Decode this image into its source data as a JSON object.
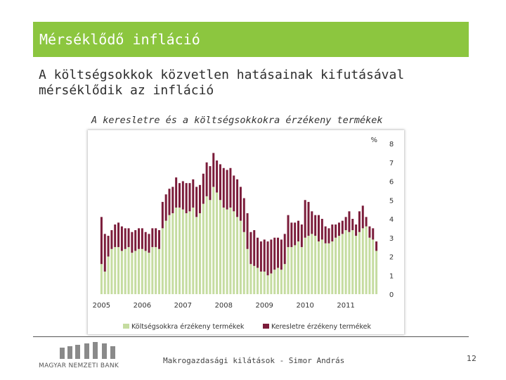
{
  "slide": {
    "title": "Mérséklődő infláció",
    "subtitle": "A költségsokkok közvetlen hatásainak kifutásával mérséklődik az infláció",
    "footer_text": "Makrogazdasági kilátások - Simor András",
    "page_number": "12",
    "logo_text": "MAGYAR NEMZETI BANK"
  },
  "colors": {
    "title_bar": "#8cc63f",
    "series_cost": "#c5dca0",
    "series_demand": "#7b1c3a"
  },
  "chart_data": {
    "type": "bar",
    "stacked": true,
    "title": "A keresletre és a költségsokkokra érzékeny termékek",
    "ylabel": "%",
    "ylim": [
      0,
      8
    ],
    "yticks": [
      "0",
      "1",
      "2",
      "3",
      "4",
      "5",
      "6",
      "7",
      "8"
    ],
    "x_tick_labels": [
      "2005",
      "2006",
      "2007",
      "2008",
      "2009",
      "2010",
      "2011"
    ],
    "legend_position": "bottom",
    "frequency": "monthly",
    "start": "2005-01",
    "series": [
      {
        "name": "Költségsokkra érzékeny termékek",
        "values": [
          1.6,
          1.2,
          2.0,
          2.4,
          2.5,
          2.5,
          2.3,
          2.4,
          2.5,
          2.2,
          2.3,
          2.4,
          2.4,
          2.3,
          2.2,
          2.5,
          2.5,
          2.4,
          3.5,
          3.9,
          4.2,
          4.3,
          4.6,
          4.6,
          4.5,
          4.3,
          4.4,
          4.6,
          4.1,
          4.3,
          4.8,
          5.2,
          5.0,
          5.7,
          5.4,
          5.0,
          4.6,
          4.5,
          4.6,
          4.4,
          4.1,
          3.9,
          3.3,
          2.4,
          1.6,
          1.5,
          1.4,
          1.2,
          1.2,
          1.0,
          1.1,
          1.3,
          1.4,
          1.3,
          1.6,
          2.5,
          2.5,
          2.6,
          2.8,
          2.5,
          3.0,
          3.1,
          3.2,
          3.1,
          2.8,
          2.9,
          2.7,
          2.7,
          2.8,
          3.0,
          3.1,
          3.2,
          3.4,
          3.3,
          3.4,
          3.1,
          3.3,
          3.5,
          3.6,
          3.0,
          2.9,
          2.3
        ]
      },
      {
        "name": "Keresletre érzékeny termékek",
        "values": [
          2.5,
          2.0,
          1.1,
          1.0,
          1.2,
          1.3,
          1.3,
          1.1,
          1.0,
          1.1,
          1.1,
          1.1,
          1.1,
          1.0,
          1.0,
          1.0,
          1.0,
          1.0,
          1.4,
          1.4,
          1.4,
          1.4,
          1.6,
          1.3,
          1.5,
          1.6,
          1.5,
          1.5,
          1.6,
          1.5,
          1.6,
          1.8,
          1.8,
          1.8,
          1.7,
          1.9,
          2.1,
          2.1,
          2.1,
          1.9,
          2.0,
          1.8,
          1.8,
          1.9,
          1.7,
          1.9,
          1.6,
          1.6,
          1.7,
          1.8,
          1.8,
          1.7,
          1.6,
          1.6,
          1.6,
          1.7,
          1.3,
          1.2,
          1.1,
          1.2,
          2.0,
          1.8,
          1.2,
          1.1,
          1.4,
          1.1,
          0.9,
          0.8,
          0.9,
          0.7,
          0.7,
          0.7,
          0.7,
          1.1,
          0.6,
          0.6,
          1.1,
          1.2,
          0.5,
          0.6,
          0.6,
          0.5
        ]
      }
    ]
  }
}
